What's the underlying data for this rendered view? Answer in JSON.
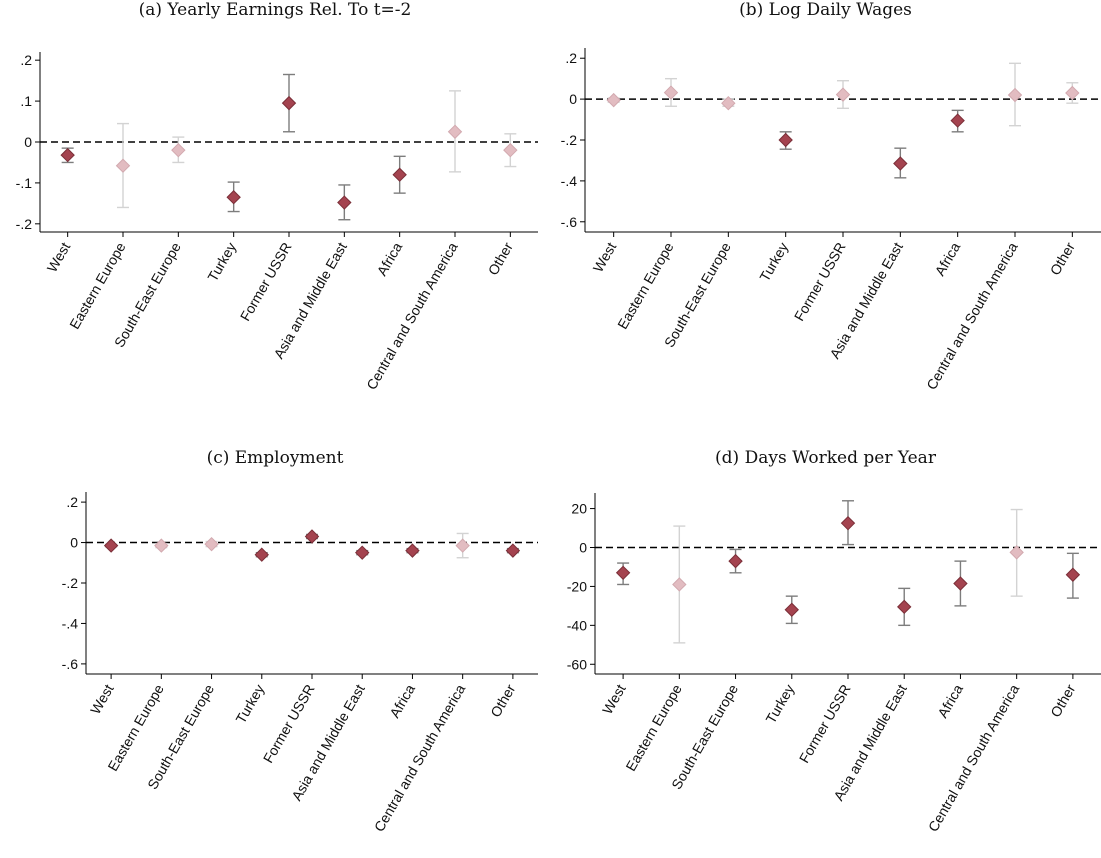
{
  "colors": {
    "significant": "#a4434f",
    "significant_edge": "#7a2f38",
    "insignificant": "#e2bcc1",
    "insignificant_edge": "#d2a9af",
    "ci_significant": "#7d7d7d",
    "ci_insignificant": "#d3d3d3",
    "zero_line": "#000000"
  },
  "chart_data": [
    {
      "type": "scatter",
      "title": "(a) Yearly Earnings Rel. To t=-2",
      "categories": [
        "West",
        "Eastern Europe",
        "South-East Europe",
        "Turkey",
        "Former USSR",
        "Asia and Middle East",
        "Africa",
        "Central and South America",
        "Other"
      ],
      "values": [
        -0.032,
        -0.058,
        -0.02,
        -0.135,
        0.095,
        -0.148,
        -0.08,
        0.025,
        -0.02
      ],
      "ci_low": [
        -0.05,
        -0.16,
        -0.05,
        -0.17,
        0.025,
        -0.19,
        -0.125,
        -0.073,
        -0.06
      ],
      "ci_high": [
        -0.015,
        0.045,
        0.012,
        -0.098,
        0.165,
        -0.105,
        -0.035,
        0.125,
        0.02
      ],
      "significant": [
        true,
        false,
        false,
        true,
        true,
        true,
        true,
        false,
        false
      ],
      "ylim": [
        -0.22,
        0.22
      ],
      "yticks": [
        -0.2,
        -0.1,
        0,
        0.1,
        0.2
      ],
      "ytick_labels": [
        "-.2",
        "-.1",
        "0",
        ".1",
        ".2"
      ],
      "xlabel": "",
      "ylabel": "",
      "grid": false,
      "reference_line": 0
    },
    {
      "type": "scatter",
      "title": "(b) Log Daily Wages",
      "categories": [
        "West",
        "Eastern Europe",
        "South-East Europe",
        "Turkey",
        "Former USSR",
        "Asia and Middle East",
        "Africa",
        "Central and South America",
        "Other"
      ],
      "values": [
        -0.005,
        0.032,
        -0.02,
        -0.2,
        0.022,
        -0.315,
        -0.105,
        0.02,
        0.03
      ],
      "ci_low": [
        -0.015,
        -0.035,
        -0.035,
        -0.245,
        -0.045,
        -0.385,
        -0.16,
        -0.13,
        -0.02
      ],
      "ci_high": [
        0.005,
        0.1,
        0.0,
        -0.16,
        0.09,
        -0.24,
        -0.055,
        0.175,
        0.08
      ],
      "significant": [
        false,
        false,
        false,
        true,
        false,
        true,
        true,
        false,
        false
      ],
      "ylim": [
        -0.65,
        0.25
      ],
      "yticks": [
        -0.6,
        -0.4,
        -0.2,
        0,
        0.2
      ],
      "ytick_labels": [
        "-.6",
        "-.4",
        "-.2",
        "0",
        ".2"
      ],
      "xlabel": "",
      "ylabel": "",
      "grid": false,
      "reference_line": 0
    },
    {
      "type": "scatter",
      "title": "(c) Employment",
      "categories": [
        "West",
        "Eastern Europe",
        "South-East Europe",
        "Turkey",
        "Former USSR",
        "Asia and Middle East",
        "Africa",
        "Central and South America",
        "Other"
      ],
      "values": [
        -0.015,
        -0.015,
        -0.008,
        -0.06,
        0.03,
        -0.05,
        -0.04,
        -0.015,
        -0.04
      ],
      "ci_low": [
        -0.02,
        -0.025,
        -0.02,
        -0.07,
        0.02,
        -0.06,
        -0.05,
        -0.075,
        -0.05
      ],
      "ci_high": [
        -0.01,
        -0.005,
        0.005,
        -0.05,
        0.04,
        -0.04,
        -0.03,
        0.045,
        -0.03
      ],
      "significant": [
        true,
        false,
        false,
        true,
        true,
        true,
        true,
        false,
        true
      ],
      "ylim": [
        -0.65,
        0.25
      ],
      "yticks": [
        -0.6,
        -0.4,
        -0.2,
        0,
        0.2
      ],
      "ytick_labels": [
        "-.6",
        "-.4",
        "-.2",
        "0",
        ".2"
      ],
      "xlabel": "",
      "ylabel": "",
      "grid": false,
      "reference_line": 0
    },
    {
      "type": "scatter",
      "title": "(d) Days Worked per Year",
      "categories": [
        "West",
        "Eastern Europe",
        "South-East Europe",
        "Turkey",
        "Former USSR",
        "Asia and Middle East",
        "Africa",
        "Central and South America",
        "Other"
      ],
      "values": [
        -13,
        -19,
        -7,
        -32,
        12.5,
        -30.5,
        -18.5,
        -2.5,
        -14
      ],
      "ci_low": [
        -19,
        -49,
        -13,
        -39,
        1.5,
        -40,
        -30,
        -25,
        -26
      ],
      "ci_high": [
        -8,
        11,
        -1,
        -25,
        24,
        -21,
        -7,
        19.5,
        -3
      ],
      "significant": [
        true,
        false,
        true,
        true,
        true,
        true,
        true,
        false,
        true
      ],
      "ylim": [
        -65,
        28
      ],
      "yticks": [
        -60,
        -40,
        -20,
        0,
        20
      ],
      "ytick_labels": [
        "-60",
        "-40",
        "-20",
        "0",
        "20"
      ],
      "xlabel": "",
      "ylabel": "",
      "grid": false,
      "reference_line": 0
    }
  ]
}
